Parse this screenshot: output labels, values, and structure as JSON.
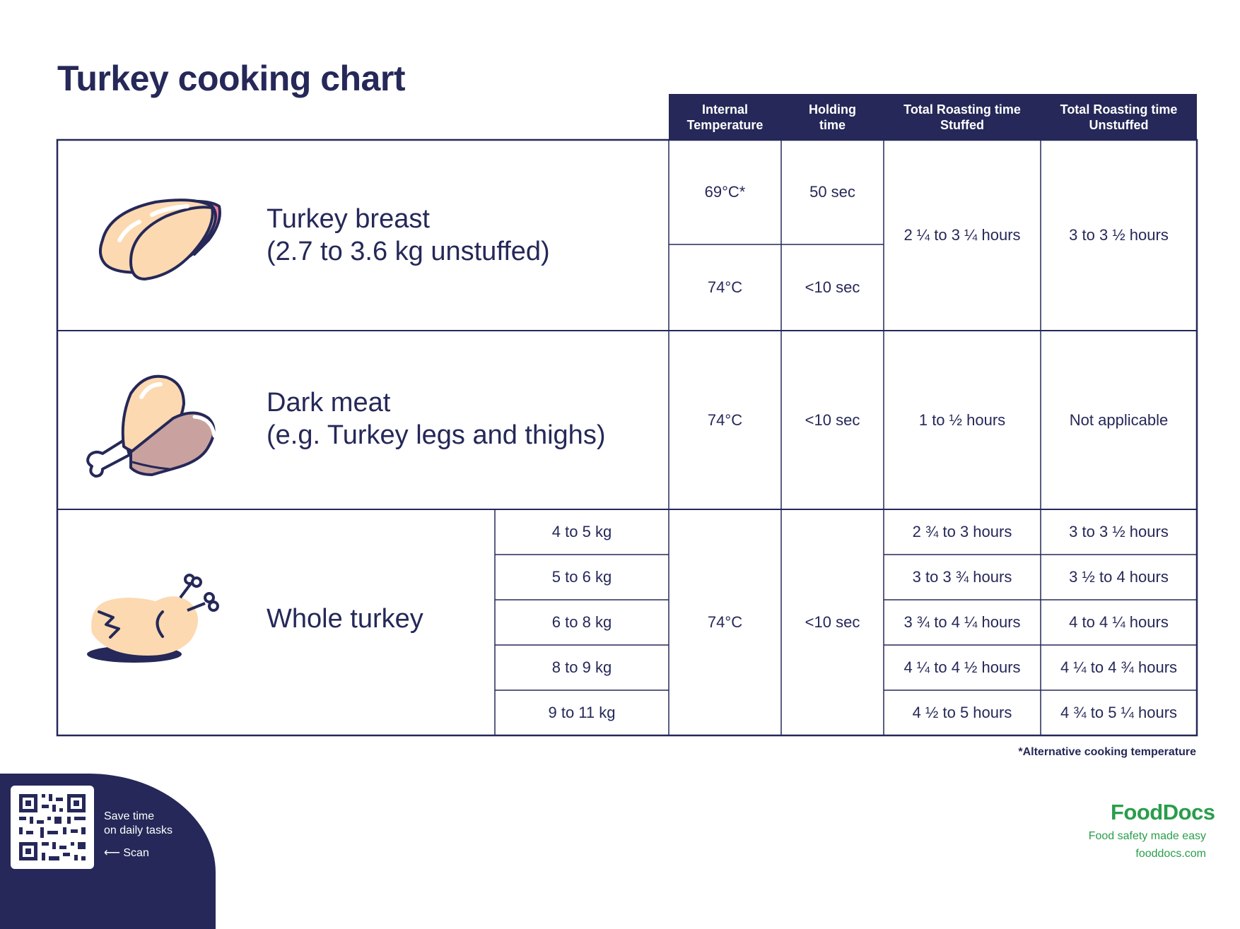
{
  "title": "Turkey cooking chart",
  "header": {
    "internal_temperature": "Internal\nTemperature",
    "holding_time": "Holding\ntime",
    "roasting_stuffed": "Total Roasting time\nStuffed",
    "roasting_unstuffed": "Total Roasting time\nUnstuffed"
  },
  "breast": {
    "label_line1": "Turkey breast",
    "label_line2": "(2.7 to 3.6 kg unstuffed)",
    "temp1": "69°C*",
    "hold1": "50 sec",
    "temp2": "74°C",
    "hold2": "<10 sec",
    "stuffed": "2 ¼ to 3 ¼ hours",
    "unstuffed": "3 to 3 ½ hours",
    "icon": "turkey-breast-icon"
  },
  "dark": {
    "label_line1": "Dark meat",
    "label_line2": "(e.g. Turkey legs and thighs)",
    "temp": "74°C",
    "hold": "<10 sec",
    "stuffed": "1 to ½ hours",
    "unstuffed": "Not applicable",
    "icon": "turkey-leg-icon"
  },
  "whole": {
    "label": "Whole turkey",
    "temp": "74°C",
    "hold": "<10 sec",
    "icon": "whole-turkey-icon",
    "rows": [
      {
        "weight": "4 to 5 kg",
        "stuffed": "2 ¾ to 3 hours",
        "unstuffed": "3 to 3 ½ hours"
      },
      {
        "weight": "5 to 6 kg",
        "stuffed": "3 to 3 ¾ hours",
        "unstuffed": "3 ½ to 4 hours"
      },
      {
        "weight": "6 to 8 kg",
        "stuffed": "3 ¾ to 4 ¼ hours",
        "unstuffed": "4 to 4 ¼ hours"
      },
      {
        "weight": "8 to 9 kg",
        "stuffed": "4 ¼ to 4 ½ hours",
        "unstuffed": "4 ¼ to 4 ¾ hours"
      },
      {
        "weight": "9 to 11 kg",
        "stuffed": "4 ½ to 5 hours",
        "unstuffed": "4 ¾ to 5 ¼ hours"
      }
    ]
  },
  "footnote": "*Alternative cooking temperature",
  "promo": {
    "line1": "Save time",
    "line2": "on daily tasks",
    "scan": "⟵  Scan",
    "qr_icon": "qr-code-icon"
  },
  "brand": {
    "name": "FoodDocs",
    "tagline": "Food safety made easy",
    "site": "fooddocs.com"
  },
  "colors": {
    "navy": "#252858",
    "green": "#2a9d4b",
    "meat": "#fcd9b0",
    "pink": "#ef7fa0",
    "dark_meat": "#c9a29f"
  }
}
